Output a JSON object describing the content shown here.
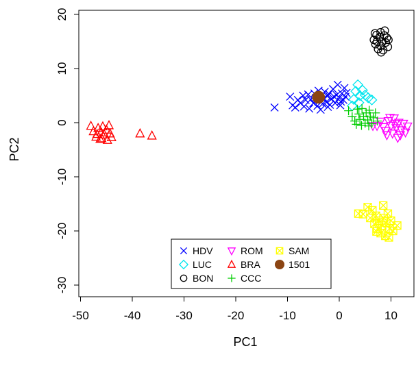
{
  "chart_data": {
    "type": "scatter",
    "title": "",
    "xlabel": "PC1",
    "ylabel": "PC2",
    "xlim": [
      -49,
      14
    ],
    "ylim": [
      -32,
      21
    ],
    "xticks": [
      -50,
      -40,
      -30,
      -20,
      -10,
      0,
      10
    ],
    "yticks": [
      -30,
      -20,
      -10,
      0,
      10,
      20
    ],
    "x_tick_labels": [
      "-50",
      "-40",
      "-30",
      "-20",
      "-10",
      "0",
      "10"
    ],
    "y_tick_labels": [
      "-30",
      "-20",
      "-10",
      "0",
      "10",
      "20"
    ],
    "grid": false,
    "legend_position": "bottom-center",
    "series": [
      {
        "name": "HDV",
        "marker": "x",
        "color": "#0000ff",
        "points": [
          [
            -12.5,
            2.8
          ],
          [
            -9.5,
            4.8
          ],
          [
            -9,
            3.2
          ],
          [
            -8.5,
            2.8
          ],
          [
            -8,
            4.2
          ],
          [
            -7.5,
            3.6
          ],
          [
            -7,
            5
          ],
          [
            -6.8,
            3
          ],
          [
            -6.5,
            4.2
          ],
          [
            -6,
            5.2
          ],
          [
            -5.8,
            2.6
          ],
          [
            -5.5,
            4.3
          ],
          [
            -5,
            3.6
          ],
          [
            -4.8,
            5.4
          ],
          [
            -4.5,
            4.6
          ],
          [
            -4.2,
            3.1
          ],
          [
            -4,
            5.9
          ],
          [
            -3.8,
            4.1
          ],
          [
            -3.5,
            5
          ],
          [
            -3.2,
            3.5
          ],
          [
            -3,
            4.5
          ],
          [
            -2.8,
            5.7
          ],
          [
            -2.5,
            3.8
          ],
          [
            -2.3,
            4.9
          ],
          [
            -2,
            5.3
          ],
          [
            -1.8,
            3.3
          ],
          [
            -1.5,
            4.4
          ],
          [
            -1.2,
            6.2
          ],
          [
            -1,
            4.8
          ],
          [
            -0.8,
            3.6
          ],
          [
            -0.5,
            5.1
          ],
          [
            -0.3,
            7
          ],
          [
            0,
            4.6
          ],
          [
            0.3,
            3.9
          ],
          [
            0.5,
            5.4
          ],
          [
            0.8,
            4.2
          ],
          [
            1,
            6.4
          ],
          [
            1.2,
            4.8
          ],
          [
            1.4,
            5.5
          ],
          [
            -3.6,
            2.4
          ],
          [
            -2.2,
            2.9
          ],
          [
            0.2,
            3.2
          ]
        ]
      },
      {
        "name": "LUC",
        "marker": "diamond",
        "color": "#00e5ee",
        "points": [
          [
            3.6,
            7
          ],
          [
            3.2,
            5.8
          ],
          [
            4,
            5
          ],
          [
            4.5,
            6
          ],
          [
            5,
            5.1
          ],
          [
            5.6,
            4.6
          ],
          [
            6.3,
            4.2
          ],
          [
            2.8,
            4.3
          ],
          [
            3.8,
            3.7
          ],
          [
            2.5,
            3.1
          ]
        ]
      },
      {
        "name": "BON",
        "marker": "circle",
        "color": "#000000",
        "points": [
          [
            6.7,
            15.3
          ],
          [
            7,
            14.5
          ],
          [
            7.2,
            16.2
          ],
          [
            7.5,
            13.6
          ],
          [
            7.8,
            15.8
          ],
          [
            8,
            14.2
          ],
          [
            8,
            16.7
          ],
          [
            8.3,
            15
          ],
          [
            8.5,
            13.4
          ],
          [
            8.7,
            16.1
          ],
          [
            9,
            14.8
          ],
          [
            9.2,
            15.7
          ],
          [
            9.4,
            14
          ],
          [
            7.3,
            15
          ],
          [
            8.1,
            13
          ],
          [
            8.8,
            17
          ],
          [
            6.9,
            16.5
          ],
          [
            9.5,
            15.3
          ]
        ]
      },
      {
        "name": "ROM",
        "marker": "triangle-down",
        "color": "#ff00ff",
        "points": [
          [
            8,
            0.2
          ],
          [
            8.5,
            -0.8
          ],
          [
            9,
            -1.5
          ],
          [
            9.5,
            0.3
          ],
          [
            10,
            -0.6
          ],
          [
            10.3,
            -2
          ],
          [
            10.6,
            0.8
          ],
          [
            11,
            -1
          ],
          [
            11.3,
            -2.8
          ],
          [
            11.5,
            0
          ],
          [
            12,
            -1.4
          ],
          [
            12.4,
            -0.2
          ],
          [
            12.8,
            -1.8
          ],
          [
            13.2,
            -0.7
          ],
          [
            9.2,
            -2.3
          ],
          [
            10.8,
            -0.2
          ],
          [
            11.8,
            -2.3
          ],
          [
            7.3,
            -0.6
          ],
          [
            6.5,
            -0.6
          ],
          [
            9.8,
            0.9
          ]
        ]
      },
      {
        "name": "BRA",
        "marker": "triangle-up",
        "color": "#ff0000",
        "points": [
          [
            -48,
            -0.6
          ],
          [
            -47.5,
            -1.6
          ],
          [
            -47,
            -2.6
          ],
          [
            -46.6,
            -1
          ],
          [
            -46.2,
            -3
          ],
          [
            -46,
            -1.8
          ],
          [
            -45.7,
            -0.7
          ],
          [
            -45.4,
            -2.2
          ],
          [
            -45,
            -1.3
          ],
          [
            -44.8,
            -3.2
          ],
          [
            -44.5,
            -0.5
          ],
          [
            -44.3,
            -2
          ],
          [
            -44,
            -2.7
          ],
          [
            -45.9,
            -2.9
          ],
          [
            -46.8,
            -2.1
          ],
          [
            -38.5,
            -2
          ],
          [
            -36.2,
            -2.4
          ]
        ]
      },
      {
        "name": "CCC",
        "marker": "plus",
        "color": "#00cd00",
        "points": [
          [
            1.8,
            2.2
          ],
          [
            2.5,
            1.1
          ],
          [
            3,
            0.3
          ],
          [
            3.3,
            -0.3
          ],
          [
            3.8,
            1.6
          ],
          [
            4,
            0.6
          ],
          [
            4.4,
            2.6
          ],
          [
            4.7,
            1.1
          ],
          [
            5,
            -0.1
          ],
          [
            5.2,
            1.8
          ],
          [
            5.5,
            0.5
          ],
          [
            5.8,
            2.3
          ],
          [
            6,
            1.2
          ],
          [
            6.3,
            -0.2
          ],
          [
            6.6,
            0.9
          ],
          [
            7,
            1.8
          ],
          [
            7.4,
            0.3
          ],
          [
            4.3,
            -0.5
          ],
          [
            5.7,
            -0.6
          ],
          [
            3.5,
            2.5
          ]
        ]
      },
      {
        "name": "SAM",
        "marker": "square-x",
        "color": "#ffff00",
        "points": [
          [
            3.7,
            -16.8
          ],
          [
            4.6,
            -16.9
          ],
          [
            5.5,
            -15.6
          ],
          [
            6,
            -17.6
          ],
          [
            6.4,
            -16.2
          ],
          [
            6.8,
            -18.7
          ],
          [
            7.1,
            -17.2
          ],
          [
            7.4,
            -19.6
          ],
          [
            7.7,
            -18.1
          ],
          [
            8,
            -20.4
          ],
          [
            8.3,
            -19
          ],
          [
            8.6,
            -17.6
          ],
          [
            8.9,
            -20.9
          ],
          [
            9.1,
            -18.5
          ],
          [
            9.4,
            -16.8
          ],
          [
            9.7,
            -19.6
          ],
          [
            10,
            -18.1
          ],
          [
            10.4,
            -20
          ],
          [
            8.5,
            -15.3
          ],
          [
            11.2,
            -19
          ],
          [
            7.2,
            -20.1
          ],
          [
            9.6,
            -21.2
          ]
        ]
      },
      {
        "name": "1501",
        "marker": "filled-circle",
        "color": "#8b4513",
        "points": [
          [
            -4,
            4.7
          ]
        ]
      }
    ]
  }
}
